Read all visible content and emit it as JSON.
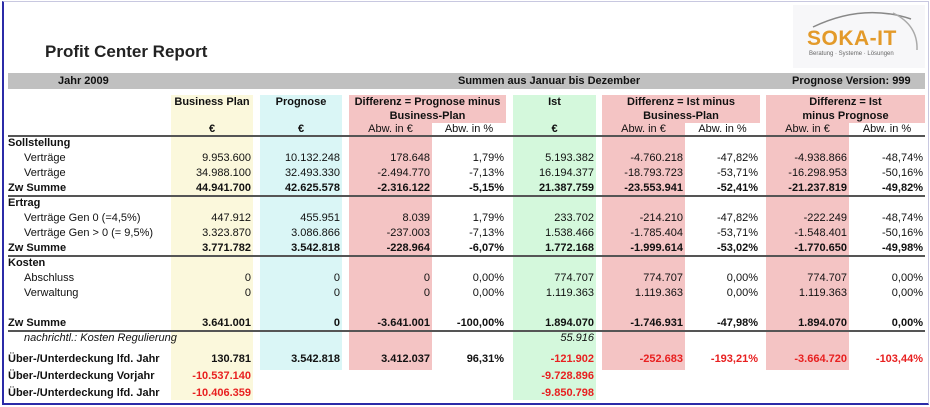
{
  "title": "Profit Center Report",
  "logo": {
    "name": "SOKA-IT",
    "tagline": "Beratung · Systeme · Lösungen",
    "color": "#e39a2a"
  },
  "bar": {
    "year": "Jahr 2009",
    "range": "Summen aus Januar bis Dezember",
    "version": "Prognose Version: 999"
  },
  "colors": {
    "business_plan": "#fbf8dc",
    "prognose": "#daf6f6",
    "differenz": "#f4c4c4",
    "ist": "#d4f8dc",
    "negative": "#e82020"
  },
  "headers": {
    "business_plan": "Business Plan",
    "prognose": "Prognose",
    "diff1": [
      "Differenz = Prognose minus",
      "Business-Plan"
    ],
    "ist": "Ist",
    "diff2": [
      "Differenz = Ist minus",
      "Business-Plan"
    ],
    "diff3": [
      "Differenz = Ist",
      "minus Prognose"
    ]
  },
  "units": [
    "€",
    "€",
    "Abw. in €",
    "Abw. in %",
    "€",
    "Abw. in €",
    "Abw. in %",
    "Abw. in €",
    "Abw. in %"
  ],
  "rows": [
    {
      "type": "sec",
      "label": "Sollstellung",
      "values": []
    },
    {
      "type": "item",
      "label": "Verträge",
      "values": [
        "9.953.600",
        "10.132.248",
        "178.648",
        "1,79%",
        "5.193.382",
        "-4.760.218",
        "-47,82%",
        "-4.938.866",
        "-48,74%"
      ]
    },
    {
      "type": "item",
      "label": "Verträge",
      "values": [
        "34.988.100",
        "32.493.330",
        "-2.494.770",
        "-7,13%",
        "16.194.377",
        "-18.793.723",
        "-53,71%",
        "-16.298.953",
        "-50,16%"
      ]
    },
    {
      "type": "sum",
      "label": "Zw Summe",
      "values": [
        "44.941.700",
        "42.625.578",
        "-2.316.122",
        "-5,15%",
        "21.387.759",
        "-23.553.941",
        "-52,41%",
        "-21.237.819",
        "-49,82%"
      ]
    },
    {
      "type": "sec",
      "label": "Ertrag",
      "values": []
    },
    {
      "type": "item",
      "label": "Verträge Gen 0 (=4,5%)",
      "values": [
        "447.912",
        "455.951",
        "8.039",
        "1,79%",
        "233.702",
        "-214.210",
        "-47,82%",
        "-222.249",
        "-48,74%"
      ]
    },
    {
      "type": "item",
      "label": "Verträge Gen > 0 (= 9,5%)",
      "values": [
        "3.323.870",
        "3.086.866",
        "-237.003",
        "-7,13%",
        "1.538.466",
        "-1.785.404",
        "-53,71%",
        "-1.548.401",
        "-50,16%"
      ]
    },
    {
      "type": "sum",
      "label": "Zw Summe",
      "values": [
        "3.771.782",
        "3.542.818",
        "-228.964",
        "-6,07%",
        "1.772.168",
        "-1.999.614",
        "-53,02%",
        "-1.770.650",
        "-49,98%"
      ]
    },
    {
      "type": "sec",
      "label": "Kosten",
      "values": []
    },
    {
      "type": "item",
      "label": "Abschluss",
      "values": [
        "0",
        "0",
        "0",
        "0,00%",
        "774.707",
        "774.707",
        "0,00%",
        "774.707",
        "0,00%"
      ]
    },
    {
      "type": "item",
      "label": "Verwaltung",
      "values": [
        "0",
        "0",
        "0",
        "0,00%",
        "1.119.363",
        "1.119.363",
        "0,00%",
        "1.119.363",
        "0,00%"
      ]
    },
    {
      "type": "spacer",
      "label": "",
      "values": []
    },
    {
      "type": "sum",
      "label": "Zw Summe",
      "values": [
        "3.641.001",
        "0",
        "-3.641.001",
        "-100,00%",
        "1.894.070",
        "-1.746.931",
        "-47,98%",
        "1.894.070",
        "0,00%"
      ]
    },
    {
      "type": "ital",
      "label": "nachrichtl.: Kosten Regulierung",
      "values": [
        "",
        "",
        "",
        "",
        "55.916",
        "",
        "",
        "",
        ""
      ]
    },
    {
      "type": "gap",
      "label": "",
      "values": []
    },
    {
      "type": "sum",
      "label": "Über-/Unterdeckung lfd. Jahr",
      "values": [
        "130.781",
        "3.542.818",
        "3.412.037",
        "96,31%",
        "-121.902",
        "-252.683",
        "-193,21%",
        "-3.664.720",
        "-103,44%"
      ],
      "red": [
        4,
        5,
        6,
        7,
        8
      ]
    },
    {
      "type": "sum",
      "label": "Über-/Unterdeckung Vorjahr",
      "values": [
        "-10.537.140",
        "",
        "",
        "",
        "-9.728.896",
        "",
        "",
        "",
        ""
      ],
      "red": [
        0,
        4
      ]
    },
    {
      "type": "sum",
      "label": "Über-/Unterdeckung lfd. Jahr",
      "values": [
        "-10.406.359",
        "",
        "",
        "",
        "-9.850.798",
        "",
        "",
        "",
        ""
      ],
      "red": [
        0,
        4
      ]
    }
  ]
}
